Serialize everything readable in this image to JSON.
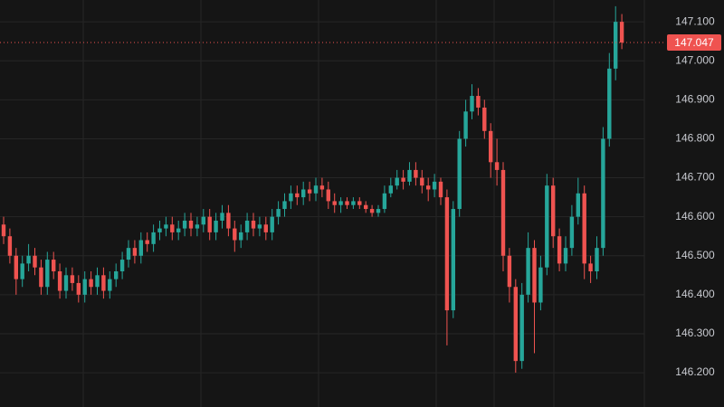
{
  "chart_data": {
    "type": "candlestick",
    "up_color": "#26a69a",
    "down_color": "#ef5350",
    "grid": true,
    "ylim": [
      146.112,
      147.156
    ],
    "yticks": [
      {
        "value": 146.2,
        "label": "146.200"
      },
      {
        "value": 146.3,
        "label": "146.300"
      },
      {
        "value": 146.4,
        "label": "146.400"
      },
      {
        "value": 146.5,
        "label": "146.500"
      },
      {
        "value": 146.6,
        "label": "146.600"
      },
      {
        "value": 146.7,
        "label": "146.700"
      },
      {
        "value": 146.8,
        "label": "146.800"
      },
      {
        "value": 146.9,
        "label": "146.900"
      },
      {
        "value": 147.0,
        "label": "147.000"
      },
      {
        "value": 147.1,
        "label": "147.100"
      }
    ],
    "last_price": {
      "value": 147.047,
      "label": "147.047"
    },
    "candles": [
      [
        146.58,
        146.6,
        146.53,
        146.55
      ],
      [
        146.55,
        146.57,
        146.48,
        146.5
      ],
      [
        146.5,
        146.52,
        146.4,
        146.44
      ],
      [
        146.44,
        146.5,
        146.42,
        146.48
      ],
      [
        146.48,
        146.53,
        146.46,
        146.5
      ],
      [
        146.5,
        146.52,
        146.45,
        146.47
      ],
      [
        146.47,
        146.49,
        146.4,
        146.42
      ],
      [
        146.42,
        146.51,
        146.4,
        146.49
      ],
      [
        146.49,
        146.51,
        146.44,
        146.46
      ],
      [
        146.46,
        146.48,
        146.39,
        146.41
      ],
      [
        146.41,
        146.47,
        146.39,
        146.45
      ],
      [
        146.45,
        146.47,
        146.41,
        146.43
      ],
      [
        146.43,
        146.45,
        146.38,
        146.4
      ],
      [
        146.4,
        146.46,
        146.38,
        146.44
      ],
      [
        146.44,
        146.46,
        146.4,
        146.42
      ],
      [
        146.42,
        146.47,
        146.4,
        146.45
      ],
      [
        146.45,
        146.47,
        146.39,
        146.41
      ],
      [
        146.41,
        146.46,
        146.39,
        146.44
      ],
      [
        146.44,
        146.48,
        146.42,
        146.46
      ],
      [
        146.46,
        146.51,
        146.44,
        146.49
      ],
      [
        146.49,
        146.54,
        146.47,
        146.52
      ],
      [
        146.52,
        146.54,
        146.48,
        146.5
      ],
      [
        146.5,
        146.56,
        146.48,
        146.54
      ],
      [
        146.54,
        146.56,
        146.51,
        146.53
      ],
      [
        146.53,
        146.58,
        146.51,
        146.56
      ],
      [
        146.56,
        146.59,
        146.54,
        146.57
      ],
      [
        146.57,
        146.6,
        146.55,
        146.58
      ],
      [
        146.58,
        146.6,
        146.54,
        146.56
      ],
      [
        146.56,
        146.59,
        146.54,
        146.57
      ],
      [
        146.57,
        146.61,
        146.55,
        146.59
      ],
      [
        146.59,
        146.61,
        146.55,
        146.57
      ],
      [
        146.57,
        146.6,
        146.55,
        146.58
      ],
      [
        146.58,
        146.62,
        146.56,
        146.6
      ],
      [
        146.6,
        146.62,
        146.54,
        146.56
      ],
      [
        146.56,
        146.61,
        146.54,
        146.59
      ],
      [
        146.59,
        146.63,
        146.57,
        146.61
      ],
      [
        146.61,
        146.63,
        146.55,
        146.57
      ],
      [
        146.57,
        146.59,
        146.51,
        146.54
      ],
      [
        146.54,
        146.58,
        146.52,
        146.56
      ],
      [
        146.56,
        146.61,
        146.54,
        146.59
      ],
      [
        146.59,
        146.61,
        146.55,
        146.57
      ],
      [
        146.57,
        146.6,
        146.55,
        146.58
      ],
      [
        146.58,
        146.6,
        146.54,
        146.56
      ],
      [
        146.56,
        146.62,
        146.54,
        146.6
      ],
      [
        146.6,
        146.64,
        146.58,
        146.62
      ],
      [
        146.62,
        146.66,
        146.6,
        146.64
      ],
      [
        146.64,
        146.68,
        146.62,
        146.66
      ],
      [
        146.66,
        146.68,
        146.63,
        146.65
      ],
      [
        146.65,
        146.69,
        146.63,
        146.67
      ],
      [
        146.67,
        146.69,
        146.64,
        146.66
      ],
      [
        146.66,
        146.7,
        146.64,
        146.68
      ],
      [
        146.68,
        146.7,
        146.65,
        146.67
      ],
      [
        146.67,
        146.69,
        146.62,
        146.64
      ],
      [
        146.64,
        146.66,
        146.61,
        146.63
      ],
      [
        146.63,
        146.65,
        146.61,
        146.64
      ],
      [
        146.64,
        146.65,
        146.62,
        146.63
      ],
      [
        146.63,
        146.65,
        146.62,
        146.64
      ],
      [
        146.64,
        146.65,
        146.62,
        146.63
      ],
      [
        146.63,
        146.64,
        146.61,
        146.62
      ],
      [
        146.62,
        146.63,
        146.6,
        146.61
      ],
      [
        146.61,
        146.63,
        146.6,
        146.62
      ],
      [
        146.62,
        146.68,
        146.61,
        146.66
      ],
      [
        146.66,
        146.7,
        146.65,
        146.68
      ],
      [
        146.68,
        146.72,
        146.67,
        146.7
      ],
      [
        146.7,
        146.72,
        146.67,
        146.69
      ],
      [
        146.69,
        146.74,
        146.68,
        146.72
      ],
      [
        146.72,
        146.74,
        146.68,
        146.7
      ],
      [
        146.7,
        146.72,
        146.66,
        146.68
      ],
      [
        146.68,
        146.7,
        146.64,
        146.67
      ],
      [
        146.67,
        146.71,
        146.65,
        146.69
      ],
      [
        146.69,
        146.7,
        146.63,
        146.65
      ],
      [
        146.65,
        146.67,
        146.27,
        146.36
      ],
      [
        146.36,
        146.64,
        146.34,
        146.62
      ],
      [
        146.62,
        146.82,
        146.6,
        146.8
      ],
      [
        146.8,
        146.9,
        146.78,
        146.87
      ],
      [
        146.87,
        146.94,
        146.85,
        146.91
      ],
      [
        146.91,
        146.93,
        146.86,
        146.88
      ],
      [
        146.88,
        146.9,
        146.8,
        146.82
      ],
      [
        146.82,
        146.84,
        146.7,
        146.74
      ],
      [
        146.74,
        146.8,
        146.68,
        146.72
      ],
      [
        146.72,
        146.74,
        146.46,
        146.5
      ],
      [
        146.5,
        146.52,
        146.38,
        146.42
      ],
      [
        146.42,
        146.44,
        146.2,
        146.23
      ],
      [
        146.23,
        146.43,
        146.21,
        146.4
      ],
      [
        146.4,
        146.56,
        146.38,
        146.52
      ],
      [
        146.52,
        146.54,
        146.25,
        146.38
      ],
      [
        146.38,
        146.5,
        146.36,
        146.47
      ],
      [
        146.47,
        146.71,
        146.45,
        146.68
      ],
      [
        146.68,
        146.7,
        146.52,
        146.55
      ],
      [
        146.55,
        146.57,
        146.46,
        146.48
      ],
      [
        146.48,
        146.55,
        146.46,
        146.52
      ],
      [
        146.52,
        146.63,
        146.5,
        146.6
      ],
      [
        146.6,
        146.7,
        146.58,
        146.66
      ],
      [
        146.66,
        146.68,
        146.44,
        146.48
      ],
      [
        146.48,
        146.5,
        146.43,
        146.46
      ],
      [
        146.46,
        146.55,
        146.44,
        146.52
      ],
      [
        146.52,
        146.83,
        146.5,
        146.8
      ],
      [
        146.8,
        147.02,
        146.78,
        146.98
      ],
      [
        146.98,
        147.14,
        146.95,
        147.1
      ],
      [
        147.1,
        147.12,
        147.03,
        147.047
      ]
    ]
  }
}
